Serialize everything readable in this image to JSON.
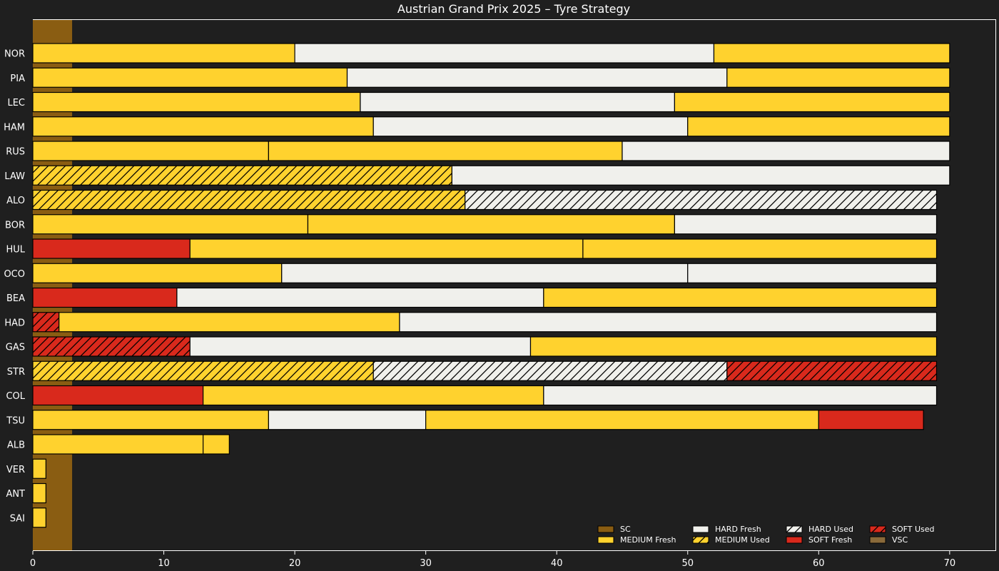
{
  "chart_data": {
    "type": "bar",
    "orientation": "horizontal-stacked",
    "title": "Austrian Grand Prix 2025  –  Tyre Strategy",
    "xlabel": "",
    "ylabel": "",
    "xlim": [
      0,
      73.5
    ],
    "xticks": [
      0,
      10,
      20,
      30,
      40,
      50,
      60,
      70
    ],
    "grid": false,
    "legend_position": "bottom-right",
    "compound_colors": {
      "SOFT": "#d9291c",
      "MEDIUM": "#ffd22e",
      "HARD": "#f0f0ec",
      "SC": "#8a5d12",
      "VSC": "#8a6a3a"
    },
    "neutralizations": [
      {
        "type": "SC",
        "start": 0,
        "end": 3
      }
    ],
    "drivers": [
      {
        "driver": "NOR",
        "stints": [
          {
            "compound": "MEDIUM",
            "fresh": true,
            "start": 0,
            "end": 20
          },
          {
            "compound": "HARD",
            "fresh": true,
            "start": 20,
            "end": 52
          },
          {
            "compound": "MEDIUM",
            "fresh": true,
            "start": 52,
            "end": 70
          }
        ]
      },
      {
        "driver": "PIA",
        "stints": [
          {
            "compound": "MEDIUM",
            "fresh": true,
            "start": 0,
            "end": 24
          },
          {
            "compound": "HARD",
            "fresh": true,
            "start": 24,
            "end": 53
          },
          {
            "compound": "MEDIUM",
            "fresh": true,
            "start": 53,
            "end": 70
          }
        ]
      },
      {
        "driver": "LEC",
        "stints": [
          {
            "compound": "MEDIUM",
            "fresh": true,
            "start": 0,
            "end": 25
          },
          {
            "compound": "HARD",
            "fresh": true,
            "start": 25,
            "end": 49
          },
          {
            "compound": "MEDIUM",
            "fresh": true,
            "start": 49,
            "end": 70
          }
        ]
      },
      {
        "driver": "HAM",
        "stints": [
          {
            "compound": "MEDIUM",
            "fresh": true,
            "start": 0,
            "end": 26
          },
          {
            "compound": "HARD",
            "fresh": true,
            "start": 26,
            "end": 50
          },
          {
            "compound": "MEDIUM",
            "fresh": true,
            "start": 50,
            "end": 70
          }
        ]
      },
      {
        "driver": "RUS",
        "stints": [
          {
            "compound": "MEDIUM",
            "fresh": true,
            "start": 0,
            "end": 18
          },
          {
            "compound": "MEDIUM",
            "fresh": true,
            "start": 18,
            "end": 45
          },
          {
            "compound": "HARD",
            "fresh": true,
            "start": 45,
            "end": 70
          }
        ]
      },
      {
        "driver": "LAW",
        "stints": [
          {
            "compound": "MEDIUM",
            "fresh": false,
            "start": 0,
            "end": 32
          },
          {
            "compound": "HARD",
            "fresh": true,
            "start": 32,
            "end": 70
          }
        ]
      },
      {
        "driver": "ALO",
        "stints": [
          {
            "compound": "MEDIUM",
            "fresh": false,
            "start": 0,
            "end": 33
          },
          {
            "compound": "HARD",
            "fresh": false,
            "start": 33,
            "end": 69
          }
        ]
      },
      {
        "driver": "BOR",
        "stints": [
          {
            "compound": "MEDIUM",
            "fresh": true,
            "start": 0,
            "end": 21
          },
          {
            "compound": "MEDIUM",
            "fresh": true,
            "start": 21,
            "end": 49
          },
          {
            "compound": "HARD",
            "fresh": true,
            "start": 49,
            "end": 69
          }
        ]
      },
      {
        "driver": "HUL",
        "stints": [
          {
            "compound": "SOFT",
            "fresh": true,
            "start": 0,
            "end": 12
          },
          {
            "compound": "MEDIUM",
            "fresh": true,
            "start": 12,
            "end": 42
          },
          {
            "compound": "MEDIUM",
            "fresh": true,
            "start": 42,
            "end": 69
          }
        ]
      },
      {
        "driver": "OCO",
        "stints": [
          {
            "compound": "MEDIUM",
            "fresh": true,
            "start": 0,
            "end": 19
          },
          {
            "compound": "HARD",
            "fresh": true,
            "start": 19,
            "end": 50
          },
          {
            "compound": "HARD",
            "fresh": true,
            "start": 50,
            "end": 69
          }
        ]
      },
      {
        "driver": "BEA",
        "stints": [
          {
            "compound": "SOFT",
            "fresh": true,
            "start": 0,
            "end": 11
          },
          {
            "compound": "HARD",
            "fresh": true,
            "start": 11,
            "end": 39
          },
          {
            "compound": "MEDIUM",
            "fresh": true,
            "start": 39,
            "end": 69
          }
        ]
      },
      {
        "driver": "HAD",
        "stints": [
          {
            "compound": "SOFT",
            "fresh": false,
            "start": 0,
            "end": 2
          },
          {
            "compound": "MEDIUM",
            "fresh": true,
            "start": 2,
            "end": 28
          },
          {
            "compound": "HARD",
            "fresh": true,
            "start": 28,
            "end": 69
          }
        ]
      },
      {
        "driver": "GAS",
        "stints": [
          {
            "compound": "SOFT",
            "fresh": false,
            "start": 0,
            "end": 12
          },
          {
            "compound": "HARD",
            "fresh": true,
            "start": 12,
            "end": 38
          },
          {
            "compound": "MEDIUM",
            "fresh": true,
            "start": 38,
            "end": 69
          }
        ]
      },
      {
        "driver": "STR",
        "stints": [
          {
            "compound": "MEDIUM",
            "fresh": false,
            "start": 0,
            "end": 26
          },
          {
            "compound": "HARD",
            "fresh": false,
            "start": 26,
            "end": 53
          },
          {
            "compound": "SOFT",
            "fresh": false,
            "start": 53,
            "end": 69
          }
        ]
      },
      {
        "driver": "COL",
        "stints": [
          {
            "compound": "SOFT",
            "fresh": true,
            "start": 0,
            "end": 13
          },
          {
            "compound": "MEDIUM",
            "fresh": true,
            "start": 13,
            "end": 39
          },
          {
            "compound": "HARD",
            "fresh": true,
            "start": 39,
            "end": 69
          }
        ]
      },
      {
        "driver": "TSU",
        "stints": [
          {
            "compound": "MEDIUM",
            "fresh": true,
            "start": 0,
            "end": 18
          },
          {
            "compound": "HARD",
            "fresh": true,
            "start": 18,
            "end": 30
          },
          {
            "compound": "MEDIUM",
            "fresh": true,
            "start": 30,
            "end": 60
          },
          {
            "compound": "SOFT",
            "fresh": true,
            "start": 60,
            "end": 68
          }
        ]
      },
      {
        "driver": "ALB",
        "stints": [
          {
            "compound": "MEDIUM",
            "fresh": true,
            "start": 0,
            "end": 13
          },
          {
            "compound": "MEDIUM",
            "fresh": true,
            "start": 13,
            "end": 15
          }
        ]
      },
      {
        "driver": "VER",
        "stints": [
          {
            "compound": "MEDIUM",
            "fresh": true,
            "start": 0,
            "end": 1
          }
        ]
      },
      {
        "driver": "ANT",
        "stints": [
          {
            "compound": "MEDIUM",
            "fresh": true,
            "start": 0,
            "end": 1
          }
        ]
      },
      {
        "driver": "SAI",
        "stints": [
          {
            "compound": "MEDIUM",
            "fresh": true,
            "start": 0,
            "end": 1
          }
        ]
      }
    ],
    "legend": [
      {
        "label": "SC",
        "compound": "SC",
        "fresh": true
      },
      {
        "label": "MEDIUM Fresh",
        "compound": "MEDIUM",
        "fresh": true
      },
      {
        "label": "HARD Fresh",
        "compound": "HARD",
        "fresh": true
      },
      {
        "label": "MEDIUM Used",
        "compound": "MEDIUM",
        "fresh": false
      },
      {
        "label": "HARD Used",
        "compound": "HARD",
        "fresh": false
      },
      {
        "label": "SOFT Fresh",
        "compound": "SOFT",
        "fresh": true
      },
      {
        "label": "SOFT Used",
        "compound": "SOFT",
        "fresh": false
      },
      {
        "label": "VSC",
        "compound": "VSC",
        "fresh": true
      }
    ]
  }
}
